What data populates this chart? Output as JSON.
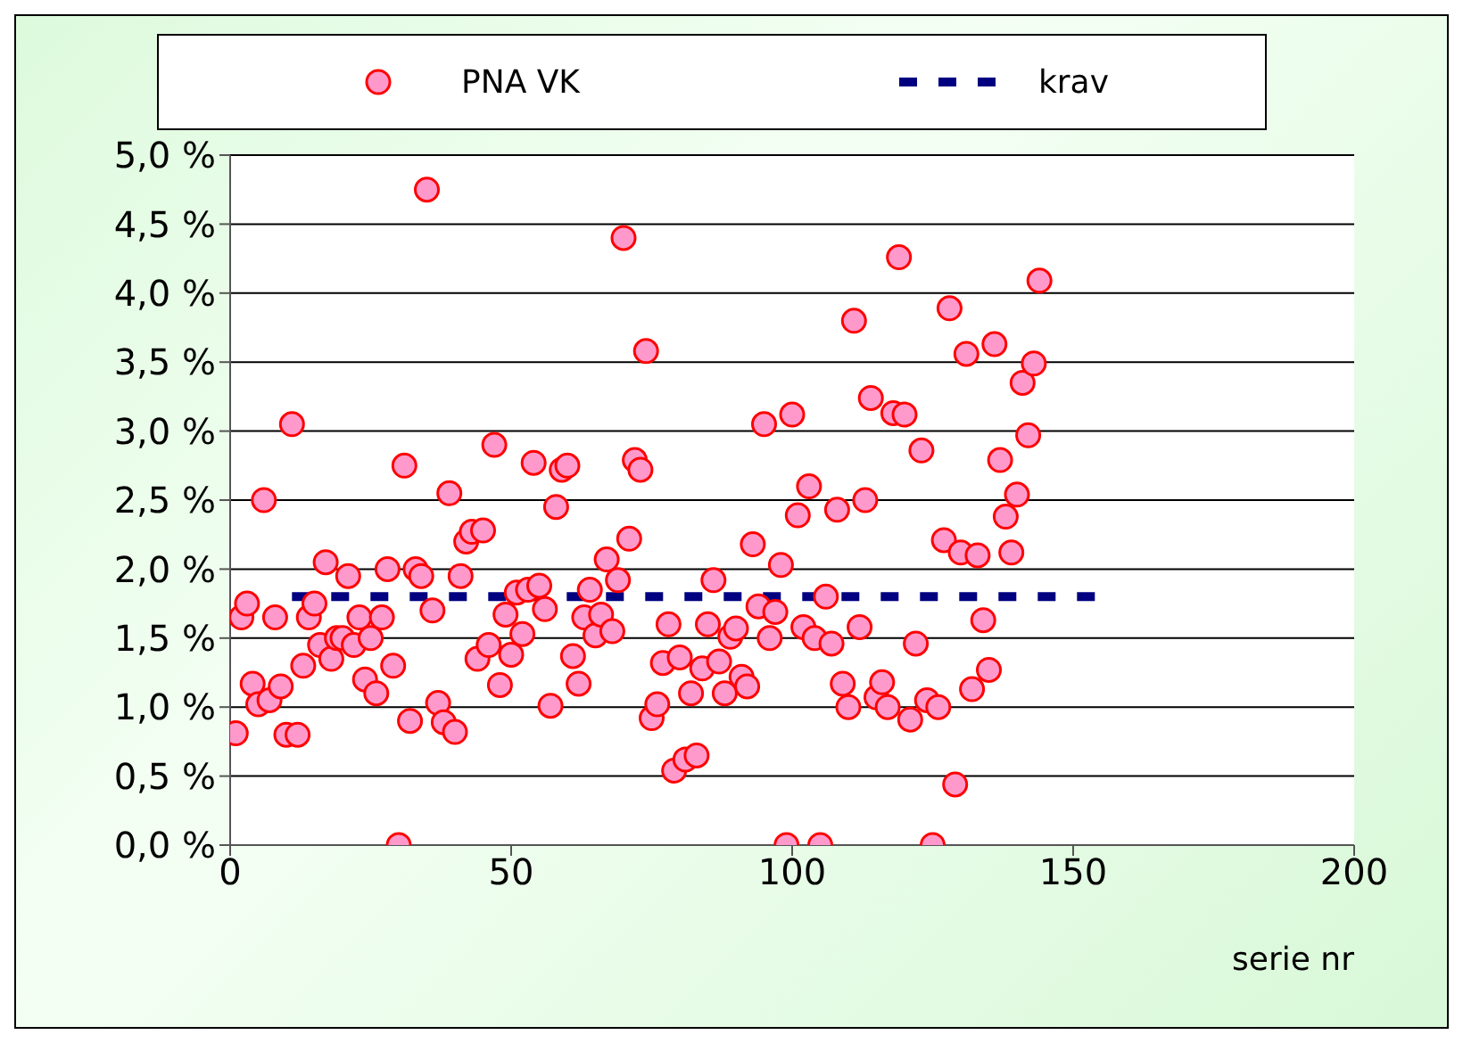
{
  "chart_data": {
    "type": "scatter",
    "xlabel": "serie nr",
    "xlim": [
      0,
      200
    ],
    "xticks": [
      0,
      50,
      100,
      150,
      200
    ],
    "ylim": [
      0,
      5
    ],
    "yticks": [
      {
        "value": 0,
        "label": "0,0 %"
      },
      {
        "value": 0.5,
        "label": "0,5 %"
      },
      {
        "value": 1,
        "label": "1,0 %"
      },
      {
        "value": 1.5,
        "label": "1,5 %"
      },
      {
        "value": 2,
        "label": "2,0 %"
      },
      {
        "value": 2.5,
        "label": "2,5 %"
      },
      {
        "value": 3,
        "label": "3,0 %"
      },
      {
        "value": 3.5,
        "label": "3,5 %"
      },
      {
        "value": 4,
        "label": "4,0 %"
      },
      {
        "value": 4.5,
        "label": "4,5 %"
      },
      {
        "value": 5,
        "label": "5,0 %"
      }
    ],
    "grid": "y",
    "legend": "top",
    "marker": "circle",
    "series": [
      {
        "name": "PNA VK",
        "color": "#ff99cc",
        "x": [
          1,
          2,
          3,
          4,
          5,
          6,
          7,
          8,
          9,
          10,
          11,
          12,
          13,
          14,
          15,
          16,
          17,
          18,
          19,
          20,
          21,
          22,
          23,
          24,
          25,
          26,
          27,
          28,
          29,
          30,
          31,
          32,
          33,
          34,
          35,
          36,
          37,
          38,
          39,
          40,
          41,
          42,
          43,
          44,
          45,
          46,
          47,
          48,
          49,
          50,
          51,
          52,
          53,
          54,
          55,
          56,
          57,
          58,
          59,
          60,
          61,
          62,
          63,
          64,
          65,
          66,
          67,
          68,
          69,
          70,
          71,
          72,
          73,
          74,
          75,
          76,
          77,
          78,
          79,
          80,
          81,
          82,
          83,
          84,
          85,
          86,
          87,
          88,
          89,
          90,
          91,
          92,
          93,
          94,
          95,
          96,
          97,
          98,
          99,
          100,
          101,
          102,
          103,
          104,
          105,
          106,
          107,
          108,
          109,
          110,
          111,
          112,
          113,
          114,
          115,
          116,
          117,
          118,
          119,
          120,
          121,
          122,
          123,
          124,
          125,
          126,
          127,
          128,
          129,
          130,
          131,
          132,
          133,
          134,
          135,
          136,
          137,
          138,
          139,
          140,
          141,
          142,
          143,
          144
        ],
        "values": [
          0.81,
          1.65,
          1.75,
          1.17,
          1.02,
          2.5,
          1.05,
          1.65,
          1.15,
          0.8,
          3.05,
          0.8,
          1.3,
          1.65,
          1.75,
          1.45,
          2.05,
          1.35,
          1.5,
          1.5,
          1.95,
          1.45,
          1.65,
          1.2,
          1.5,
          1.1,
          1.65,
          2.0,
          1.3,
          0.0,
          2.75,
          0.9,
          2.0,
          1.95,
          4.75,
          1.7,
          1.03,
          0.89,
          2.55,
          0.82,
          1.95,
          2.2,
          2.27,
          1.35,
          2.28,
          1.45,
          2.9,
          1.16,
          1.67,
          1.38,
          1.83,
          1.53,
          1.85,
          2.77,
          1.88,
          1.71,
          1.01,
          2.45,
          2.72,
          2.75,
          1.37,
          1.17,
          1.65,
          1.85,
          1.52,
          1.67,
          2.07,
          1.55,
          1.92,
          4.4,
          2.22,
          2.79,
          2.72,
          3.58,
          0.92,
          1.02,
          1.32,
          1.6,
          0.54,
          1.36,
          0.62,
          1.1,
          0.65,
          1.28,
          1.6,
          1.92,
          1.33,
          1.1,
          1.51,
          1.57,
          1.22,
          1.15,
          2.18,
          1.73,
          3.05,
          1.5,
          1.69,
          2.03,
          0.0,
          3.12,
          2.39,
          1.58,
          2.6,
          1.5,
          0.0,
          1.8,
          1.46,
          2.43,
          1.17,
          1.0,
          3.8,
          1.58,
          2.5,
          3.24,
          1.07,
          1.18,
          1.0,
          3.13,
          4.26,
          3.12,
          0.91,
          1.46,
          2.86,
          1.05,
          0.0,
          1.0,
          2.21,
          3.89,
          0.44,
          2.12,
          3.56,
          1.13,
          2.1,
          1.63,
          1.27,
          3.63,
          2.79,
          2.38,
          2.12,
          2.54,
          3.35,
          2.97,
          3.49,
          4.09
        ]
      },
      {
        "name": "krav",
        "type": "line",
        "color": "#000080",
        "line_style": "dashed",
        "marker": "none",
        "x": [
          11,
          155
        ],
        "values": [
          1.8,
          1.8
        ]
      }
    ]
  }
}
